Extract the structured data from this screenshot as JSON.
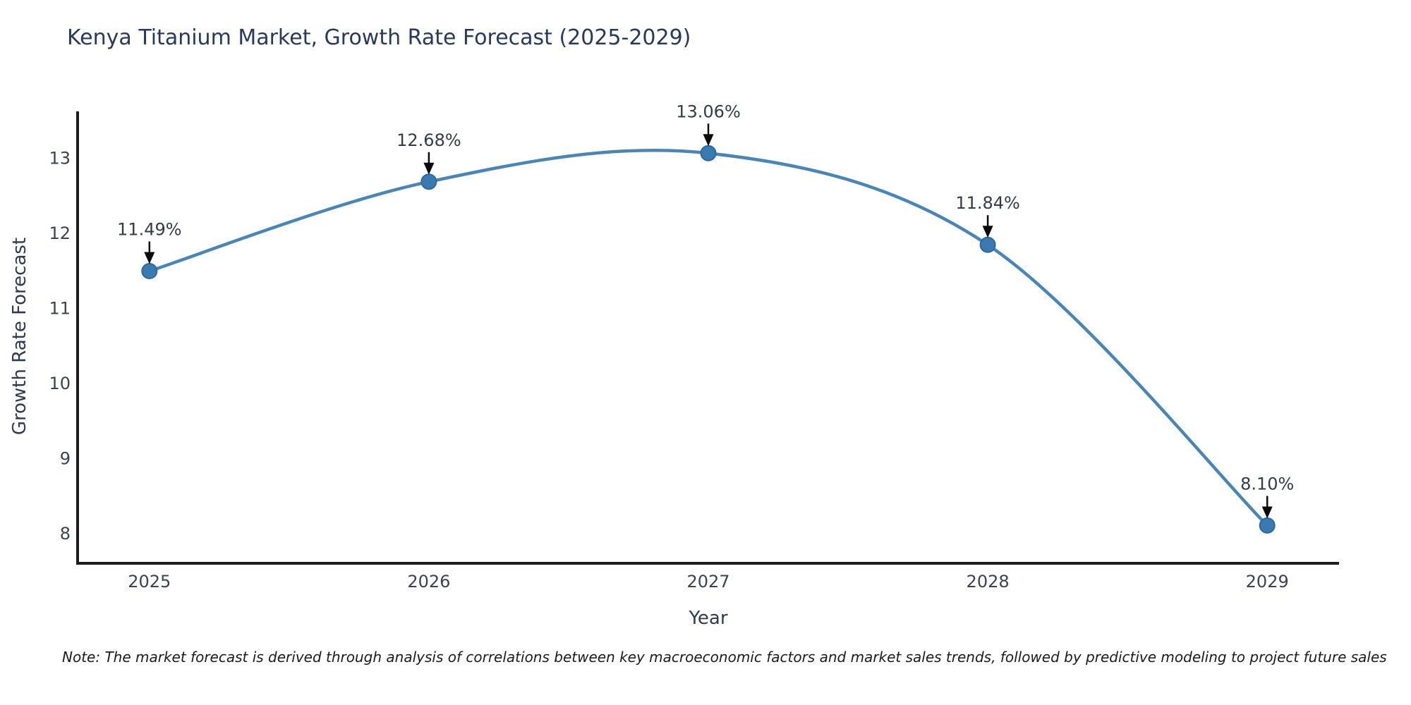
{
  "chart_data": {
    "type": "line",
    "title": "Kenya Titanium Market, Growth Rate Forecast (2025-2029)",
    "xlabel": "Year",
    "ylabel": "Growth Rate Forecast",
    "x": [
      2025,
      2026,
      2027,
      2028,
      2029
    ],
    "values": [
      11.49,
      12.68,
      13.06,
      11.84,
      8.1
    ],
    "point_labels": [
      "11.49%",
      "12.68%",
      "13.06%",
      "11.84%",
      "8.10%"
    ],
    "x_tick_labels": [
      "2025",
      "2026",
      "2027",
      "2028",
      "2029"
    ],
    "y_tick_labels": [
      "8",
      "9",
      "10",
      "11",
      "12",
      "13"
    ],
    "y_tick_values": [
      8,
      9,
      10,
      11,
      12,
      13
    ],
    "xlim": [
      2024.743,
      2029.257
    ],
    "ylim": [
      7.597,
      13.617
    ],
    "grid": false,
    "legend": "none",
    "smooth": true,
    "line_color": "#4886b8",
    "marker_fill": "#3a7ab2",
    "marker_edge": "#2d699e",
    "spine_color": "#1c1c1c",
    "annotation_arrow_color": "#0a0a0a"
  },
  "note": {
    "text": "Note: The market forecast is derived through analysis of correlations between key macroeconomic factors and market sales trends, followed by predictive modeling to project future sales"
  }
}
